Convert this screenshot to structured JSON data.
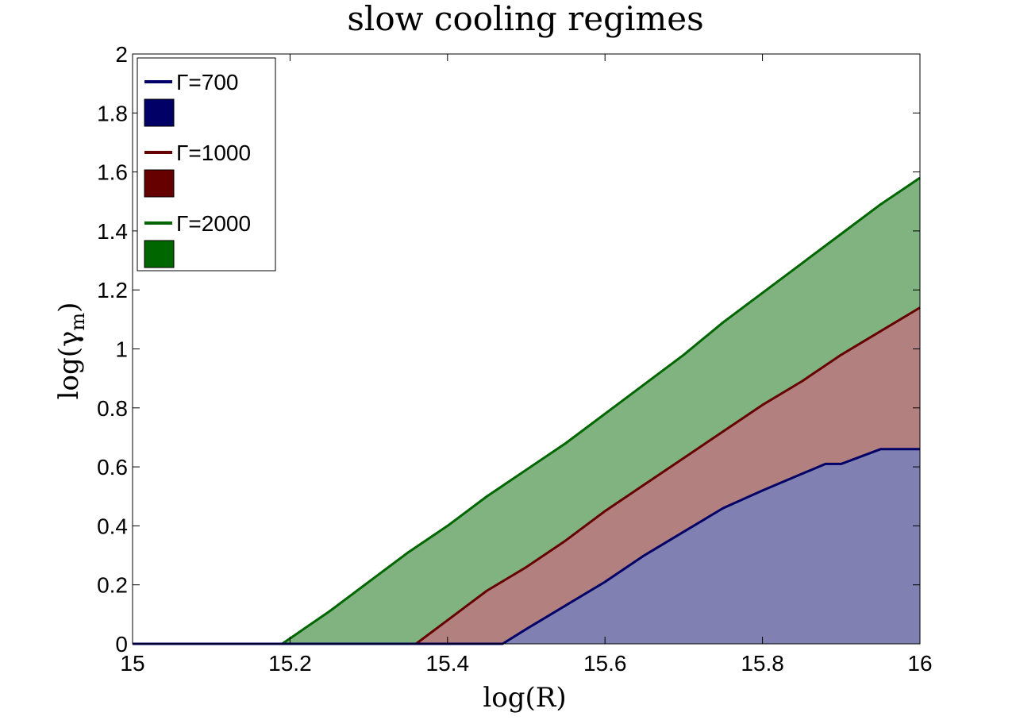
{
  "chart_data": {
    "type": "area",
    "title": "slow cooling regimes",
    "xlabel": "log(R)",
    "ylabel_main": "log(γ",
    "ylabel_sub": "m",
    "ylabel_close": ")",
    "xlim": [
      15,
      16
    ],
    "ylim": [
      0,
      2
    ],
    "xticks": [
      "15",
      "15.2",
      "15.4",
      "15.6",
      "15.8",
      "16"
    ],
    "yticks": [
      "0",
      "0.2",
      "0.4",
      "0.6",
      "0.8",
      "1",
      "1.2",
      "1.4",
      "1.6",
      "1.8",
      "2"
    ],
    "grid": false,
    "legend_position": "top-left",
    "series": [
      {
        "name": "Γ=700",
        "line_color": "#000066",
        "fill_color": "#8080b3",
        "swatch_color": "#000066",
        "x": [
          15,
          15.47,
          15.5,
          15.55,
          15.6,
          15.65,
          15.7,
          15.75,
          15.8,
          15.88,
          15.9,
          15.92,
          15.95,
          16
        ],
        "y": [
          0,
          0,
          0.05,
          0.13,
          0.21,
          0.3,
          0.38,
          0.46,
          0.52,
          0.61,
          0.61,
          0.63,
          0.66,
          0.66
        ]
      },
      {
        "name": "Γ=1000",
        "line_color": "#660000",
        "fill_color": "#b38080",
        "swatch_color": "#660000",
        "x": [
          15,
          15.36,
          15.4,
          15.45,
          15.5,
          15.55,
          15.6,
          15.65,
          15.7,
          15.75,
          15.8,
          15.85,
          15.9,
          15.95,
          16
        ],
        "y": [
          0,
          0,
          0.08,
          0.18,
          0.26,
          0.35,
          0.45,
          0.54,
          0.63,
          0.72,
          0.81,
          0.89,
          0.98,
          1.06,
          1.14
        ]
      },
      {
        "name": "Γ=2000",
        "line_color": "#006600",
        "fill_color": "#80b380",
        "swatch_color": "#006600",
        "x": [
          15,
          15.19,
          15.25,
          15.3,
          15.35,
          15.4,
          15.45,
          15.5,
          15.55,
          15.6,
          15.65,
          15.7,
          15.75,
          15.8,
          15.85,
          15.9,
          15.95,
          16
        ],
        "y": [
          0,
          0,
          0.11,
          0.21,
          0.31,
          0.4,
          0.5,
          0.59,
          0.68,
          0.78,
          0.88,
          0.98,
          1.09,
          1.19,
          1.29,
          1.39,
          1.49,
          1.58
        ]
      }
    ]
  }
}
